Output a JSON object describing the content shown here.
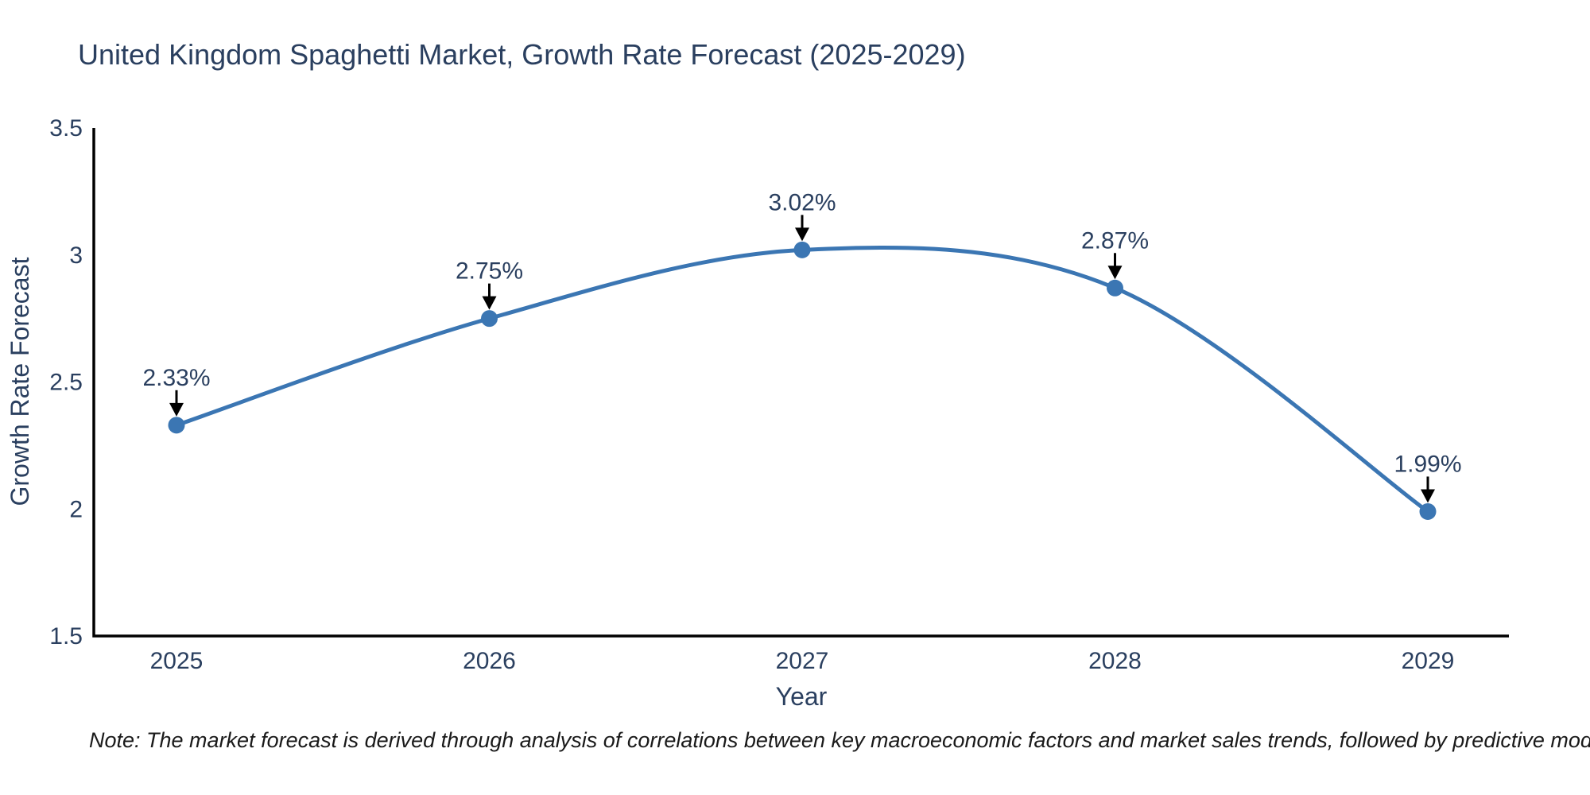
{
  "title": "United Kingdom Spaghetti Market, Growth Rate Forecast (2025-2029)",
  "note": "Note: The market forecast is derived through analysis of correlations between key macroeconomic factors and market sales trends, followed by predictive modeling to project future sales",
  "chart_data": {
    "type": "line",
    "title": "United Kingdom Spaghetti Market, Growth Rate Forecast (2025-2029)",
    "xlabel": "Year",
    "ylabel": "Growth Rate Forecast",
    "x": [
      2025,
      2026,
      2027,
      2028,
      2029
    ],
    "y": [
      2.33,
      2.75,
      3.02,
      2.87,
      1.99
    ],
    "point_labels": [
      "2.33%",
      "2.75%",
      "3.02%",
      "2.87%",
      "1.99%"
    ],
    "xtick_labels": [
      "2025",
      "2026",
      "2027",
      "2028",
      "2029"
    ],
    "ytick_values": [
      1.5,
      2,
      2.5,
      3,
      3.5
    ],
    "ytick_labels": [
      "1.5",
      "2",
      "2.5",
      "3",
      "3.5"
    ],
    "ylim": [
      1.5,
      3.5
    ],
    "line_shape": "spline",
    "grid": false,
    "legend": false,
    "colors": {
      "line": "#3b76b3",
      "marker": "#3b76b3",
      "annotation_arrow": "#000000",
      "text": "#2a3f5f",
      "axis_line": "#000000"
    }
  }
}
